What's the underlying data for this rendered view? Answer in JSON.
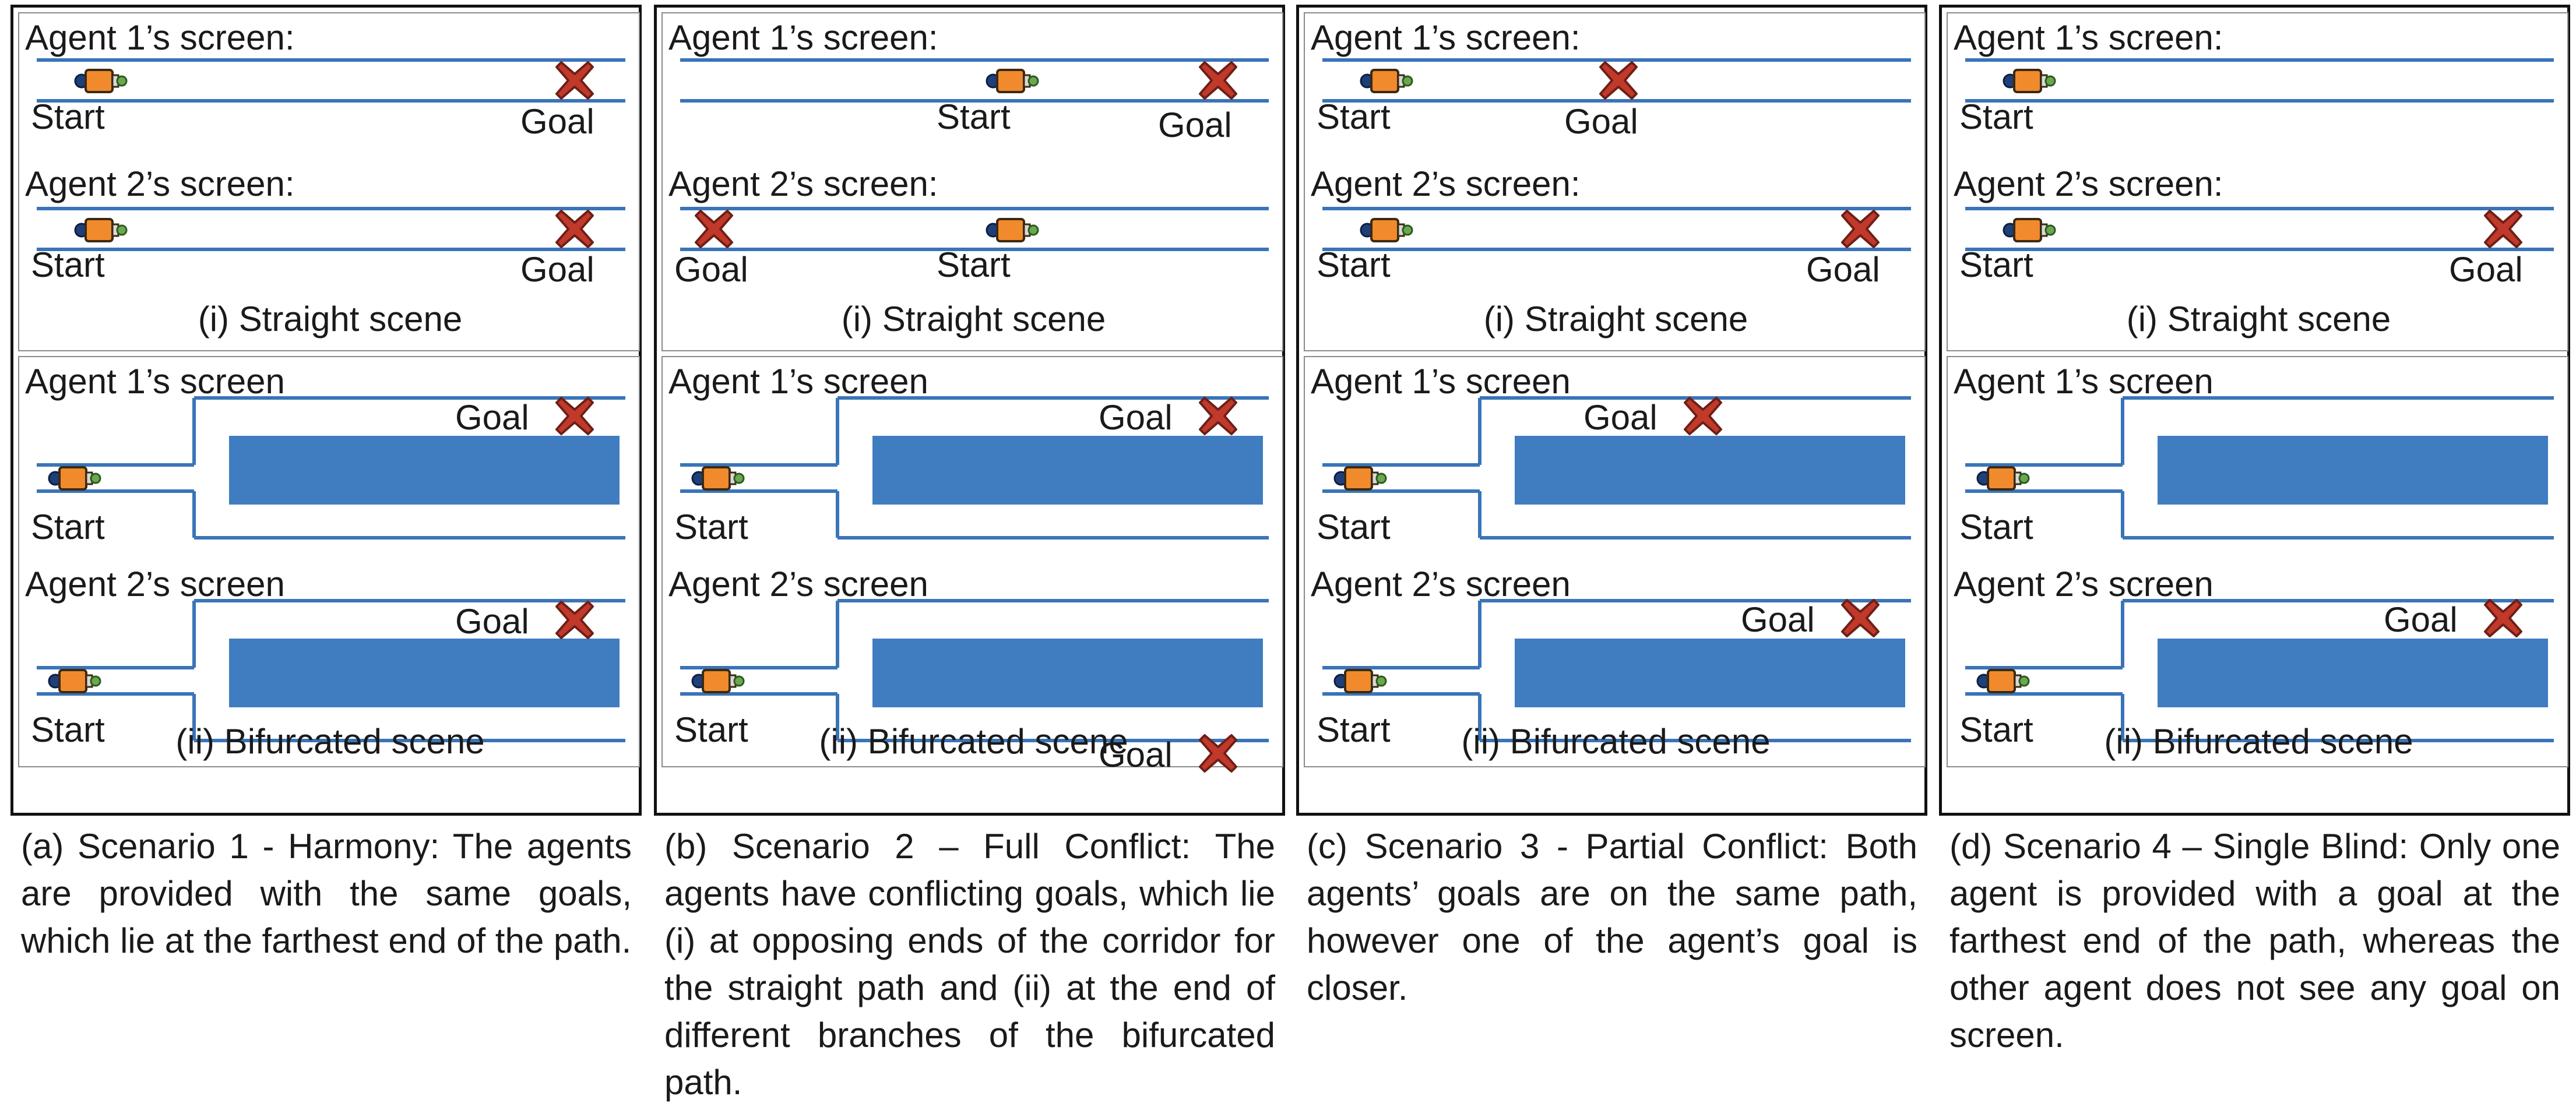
{
  "colors": {
    "track": "#3a74b8",
    "block": "#3f7dc0",
    "robot_body": "#f08a2c",
    "robot_front": "#1f3f7a",
    "robot_light": "#6aa84f",
    "goal_fill": "#c0392b",
    "goal_edge": "#6e1f15",
    "frame": "#111111"
  },
  "icons": {
    "agent": "robot-icon",
    "goal": "goal-x-icon"
  },
  "labels": {
    "agent1": "Agent 1’s screen:",
    "agent2": "Agent 2’s screen:",
    "agent1_bif": "Agent 1’s screen",
    "agent2_bif": "Agent 2’s screen",
    "start": "Start",
    "goal": "Goal",
    "straight": "(i) Straight scene",
    "bifurcated": "(ii) Bifurcated scene"
  },
  "scenarios": [
    {
      "caption": "(a) Scenario 1 - Harmony: The agents are provided with the same goals, which lie at the farthest end of the path.",
      "straight_agent1_goal": "far end",
      "straight_agent2_goal": "far end",
      "bifurcated_agent1_goal": "upper branch, end",
      "bifurcated_agent2_goal": "upper branch, end"
    },
    {
      "caption": "(b) Scenario 2 – Full Conflict: The agents have conflicting goals, which lie (i) at opposing ends of the corridor for the straight path and (ii) at the end of different branches of the bifurcated path.",
      "straight_agent1_goal": "far end",
      "straight_agent2_goal": "opposite end",
      "bifurcated_agent1_goal": "upper branch, end",
      "bifurcated_agent2_goal": "lower branch, end"
    },
    {
      "caption": "(c) Scenario 3 - Partial Conflict: Both agents’ goals are on the same path, however one of the agent’s goal is closer.",
      "straight_agent1_goal": "closer",
      "straight_agent2_goal": "far end",
      "bifurcated_agent1_goal": "upper branch, closer",
      "bifurcated_agent2_goal": "upper branch, end"
    },
    {
      "caption": "(d) Scenario 4 – Single Blind: Only one agent is provided with a goal at the farthest end of the path, whereas the other agent does not see any goal on screen.",
      "straight_agent1_goal": "none",
      "straight_agent2_goal": "far end",
      "bifurcated_agent1_goal": "none",
      "bifurcated_agent2_goal": "upper branch, end"
    }
  ]
}
